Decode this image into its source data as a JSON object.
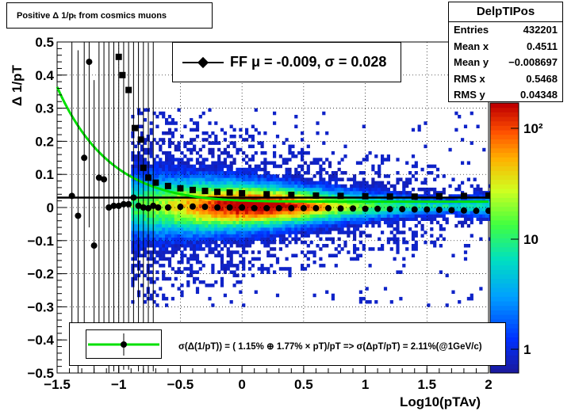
{
  "title": "Positive Δ 1/pₜ from cosmics muons",
  "stats": {
    "name": "DelpTIPos",
    "rows": [
      {
        "label": "Entries",
        "value": "432201"
      },
      {
        "label": "Mean x",
        "value": "0.4511"
      },
      {
        "label": "Mean y",
        "value": "−0.008697"
      },
      {
        "label": "RMS x",
        "value": "0.5468"
      },
      {
        "label": "RMS y",
        "value": "0.04348"
      }
    ]
  },
  "fit_legend": "FF μ = -0.009, σ =   0.028",
  "resolution_legend": "σ(Δ(1/pT)) = ( 1.15% ⊕  1.77% × pT)/pT => σ(ΔpT/pT) =  2.11%(@1GeV/c)",
  "colors": {
    "fit_line": "#00e000",
    "markers": "#000000"
  },
  "chart_data": {
    "type": "heatmap",
    "xlabel": "Log10(pTAv)",
    "ylabel": "Δ 1/pT",
    "xlim": [
      -1.5,
      2
    ],
    "ylim": [
      -0.5,
      0.5
    ],
    "x_ticks": [
      "−1.5",
      "−1",
      "−0.5",
      "0",
      "0.5",
      "1",
      "1.5",
      "2"
    ],
    "y_ticks": [
      "0.5",
      "0.4",
      "0.3",
      "0.2",
      "0.1",
      "0",
      "−0.1",
      "−0.2",
      "−0.3",
      "−0.4",
      "−0.5"
    ],
    "z_scale": "log",
    "z_ticks": [
      "1",
      "10",
      "10²"
    ],
    "grid": true,
    "mean_points": {
      "x": [
        -1.38,
        -1.33,
        -1.28,
        -1.24,
        -1.2,
        -1.16,
        -1.12,
        -1.08,
        -1.04,
        -1.0,
        -0.96,
        -0.92,
        -0.88,
        -0.84,
        -0.8,
        -0.76,
        -0.72,
        -0.68,
        -0.6,
        -0.5,
        -0.4,
        -0.3,
        -0.2,
        -0.1,
        0.0,
        0.1,
        0.2,
        0.3,
        0.4,
        0.5,
        0.6,
        0.7,
        0.8,
        0.9,
        1.0,
        1.1,
        1.2,
        1.3,
        1.4,
        1.5,
        1.6,
        1.7,
        1.8,
        1.9,
        2.0
      ],
      "y": [
        0.035,
        -0.025,
        0.15,
        0.44,
        -0.115,
        0.09,
        0.085,
        0.0,
        0.005,
        0.005,
        0.01,
        0.01,
        0.03,
        0.005,
        0.0,
        -0.002,
        0.005,
        0.0,
        0.0,
        0.002,
        0.003,
        0.002,
        0.0,
        0.0,
        0.0,
        -0.002,
        -0.002,
        -0.002,
        -0.002,
        -0.002,
        -0.002,
        -0.002,
        -0.003,
        -0.003,
        -0.004,
        -0.004,
        -0.005,
        -0.005,
        -0.006,
        -0.006,
        -0.007,
        -0.008,
        -0.009,
        -0.01,
        -0.01
      ]
    },
    "sigma_points": {
      "x": [
        -1.0,
        -0.97,
        -0.92,
        -0.87,
        -0.82,
        -0.8,
        -0.76,
        -0.7,
        -0.6,
        -0.5,
        -0.4,
        -0.3,
        -0.2,
        -0.1,
        0.0,
        0.2,
        0.4,
        0.6,
        0.8,
        1.0,
        1.2,
        1.4,
        1.6,
        1.8,
        2.0
      ],
      "y": [
        0.455,
        0.4,
        0.355,
        0.24,
        0.205,
        0.12,
        0.09,
        0.075,
        0.065,
        0.058,
        0.053,
        0.05,
        0.047,
        0.045,
        0.043,
        0.04,
        0.038,
        0.036,
        0.035,
        0.034,
        0.033,
        0.033,
        0.034,
        0.035,
        0.036
      ]
    },
    "fit_curve": {
      "a_percent": 1.15,
      "b_percent": 1.77
    },
    "fit_line_level": 0.03
  }
}
